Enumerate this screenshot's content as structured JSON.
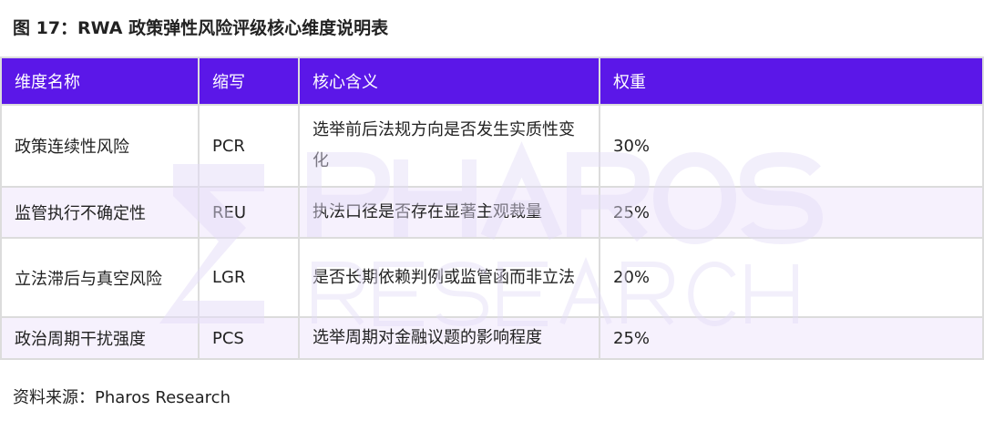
{
  "title": "图 17：RWA 政策弹性风险评级核心维度说明表",
  "table": {
    "headers": [
      "维度名称",
      "缩写",
      "核心含义",
      "权重"
    ],
    "rows": [
      [
        "政策连续性风险",
        "PCR",
        "选举前后法规方向是否发生实质性变化",
        "30%"
      ],
      [
        "监管执行不确定性",
        "REU",
        "执法口径是否存在显著主观裁量",
        "25%"
      ],
      [
        "立法滞后与真空风险",
        "LGR",
        "是否长期依赖判例或监管函而非立法",
        "20%"
      ],
      [
        "政治周期干扰强度",
        "PCS",
        "选举周期对金融议题的影响程度",
        "25%"
      ]
    ]
  },
  "source": "资料来源：Pharos Research",
  "watermark": {
    "line1": "PHAROS",
    "line2": "RESEARCH"
  },
  "colors": {
    "header": "#5b17e8",
    "alt_row": "#f4effd",
    "watermark": "#e4dcf7"
  }
}
